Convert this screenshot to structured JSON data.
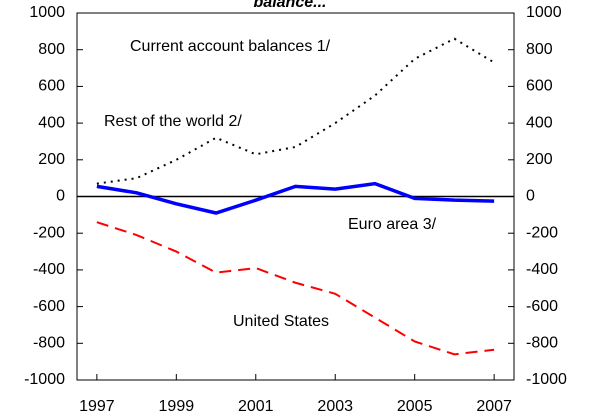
{
  "chart_data": {
    "type": "line",
    "title": "balance...",
    "annotations": [
      "Current account balances 1/"
    ],
    "x": [
      1997,
      1998,
      1999,
      2000,
      2001,
      2002,
      2003,
      2004,
      2005,
      2006,
      2007
    ],
    "series": [
      {
        "name": "Rest of the world 2/",
        "color": "#000000",
        "style": "dotted",
        "values": [
          70,
          100,
          200,
          320,
          230,
          270,
          400,
          550,
          750,
          860,
          730
        ]
      },
      {
        "name": "Euro area 3/",
        "color": "#0000ff",
        "style": "solid",
        "values": [
          55,
          20,
          -40,
          -90,
          -20,
          55,
          40,
          70,
          -10,
          -20,
          -25
        ]
      },
      {
        "name": "United States",
        "color": "#ff0000",
        "style": "dashed",
        "values": [
          -140,
          -210,
          -300,
          -415,
          -390,
          -470,
          -530,
          -660,
          -790,
          -860,
          -835
        ]
      }
    ],
    "xlim": [
      1996.5,
      2007.5
    ],
    "xticks": [
      1997,
      1999,
      2001,
      2003,
      2005,
      2007
    ],
    "ylim": [
      -1000,
      1000
    ],
    "yticks": [
      -1000,
      -800,
      -600,
      -400,
      -200,
      0,
      200,
      400,
      600,
      800,
      1000
    ],
    "y2lim": [
      -1000,
      1000
    ],
    "y2ticks": [
      -1000,
      -800,
      -600,
      -400,
      -200,
      0,
      200,
      400,
      600,
      800,
      1000
    ]
  }
}
